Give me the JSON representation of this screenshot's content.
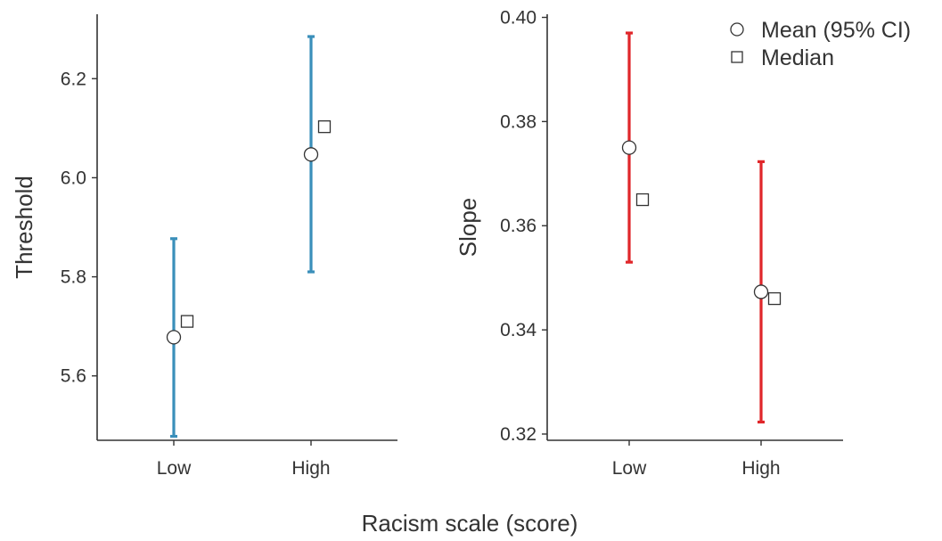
{
  "figure": {
    "xlabel": "Racism scale (score)"
  },
  "legend": {
    "placement": "top-right",
    "items": [
      {
        "label": "Mean (95% CI)",
        "marker": "circle"
      },
      {
        "label": "Median",
        "marker": "square"
      }
    ]
  },
  "chart_data": [
    {
      "type": "scatter",
      "panel": "left",
      "ylabel": "Threshold",
      "categories": [
        "Low",
        "High"
      ],
      "ylim": [
        5.47,
        6.33
      ],
      "yticks": [
        5.6,
        5.8,
        6.0,
        6.2
      ],
      "ytick_labels": [
        "5.6",
        "5.8",
        "6.0",
        "6.2"
      ],
      "color": "#3a8fba",
      "series": [
        {
          "name": "Mean (95% CI)",
          "values": [
            5.678,
            6.047
          ],
          "ci_low": [
            5.478,
            5.81
          ],
          "ci_high": [
            5.877,
            6.285
          ]
        },
        {
          "name": "Median",
          "values": [
            5.71,
            6.103
          ]
        }
      ],
      "grid": false
    },
    {
      "type": "scatter",
      "panel": "right",
      "ylabel": "Slope",
      "categories": [
        "Low",
        "High"
      ],
      "ylim": [
        0.3188,
        0.4006
      ],
      "yticks": [
        0.32,
        0.34,
        0.36,
        0.38,
        0.4
      ],
      "ytick_labels": [
        "0.32",
        "0.34",
        "0.36",
        "0.38",
        "0.40"
      ],
      "color": "#e0262a",
      "series": [
        {
          "name": "Mean (95% CI)",
          "values": [
            0.375,
            0.3473
          ],
          "ci_low": [
            0.353,
            0.3223
          ],
          "ci_high": [
            0.397,
            0.3723
          ]
        },
        {
          "name": "Median",
          "values": [
            0.365,
            0.346
          ]
        }
      ],
      "grid": false
    }
  ]
}
